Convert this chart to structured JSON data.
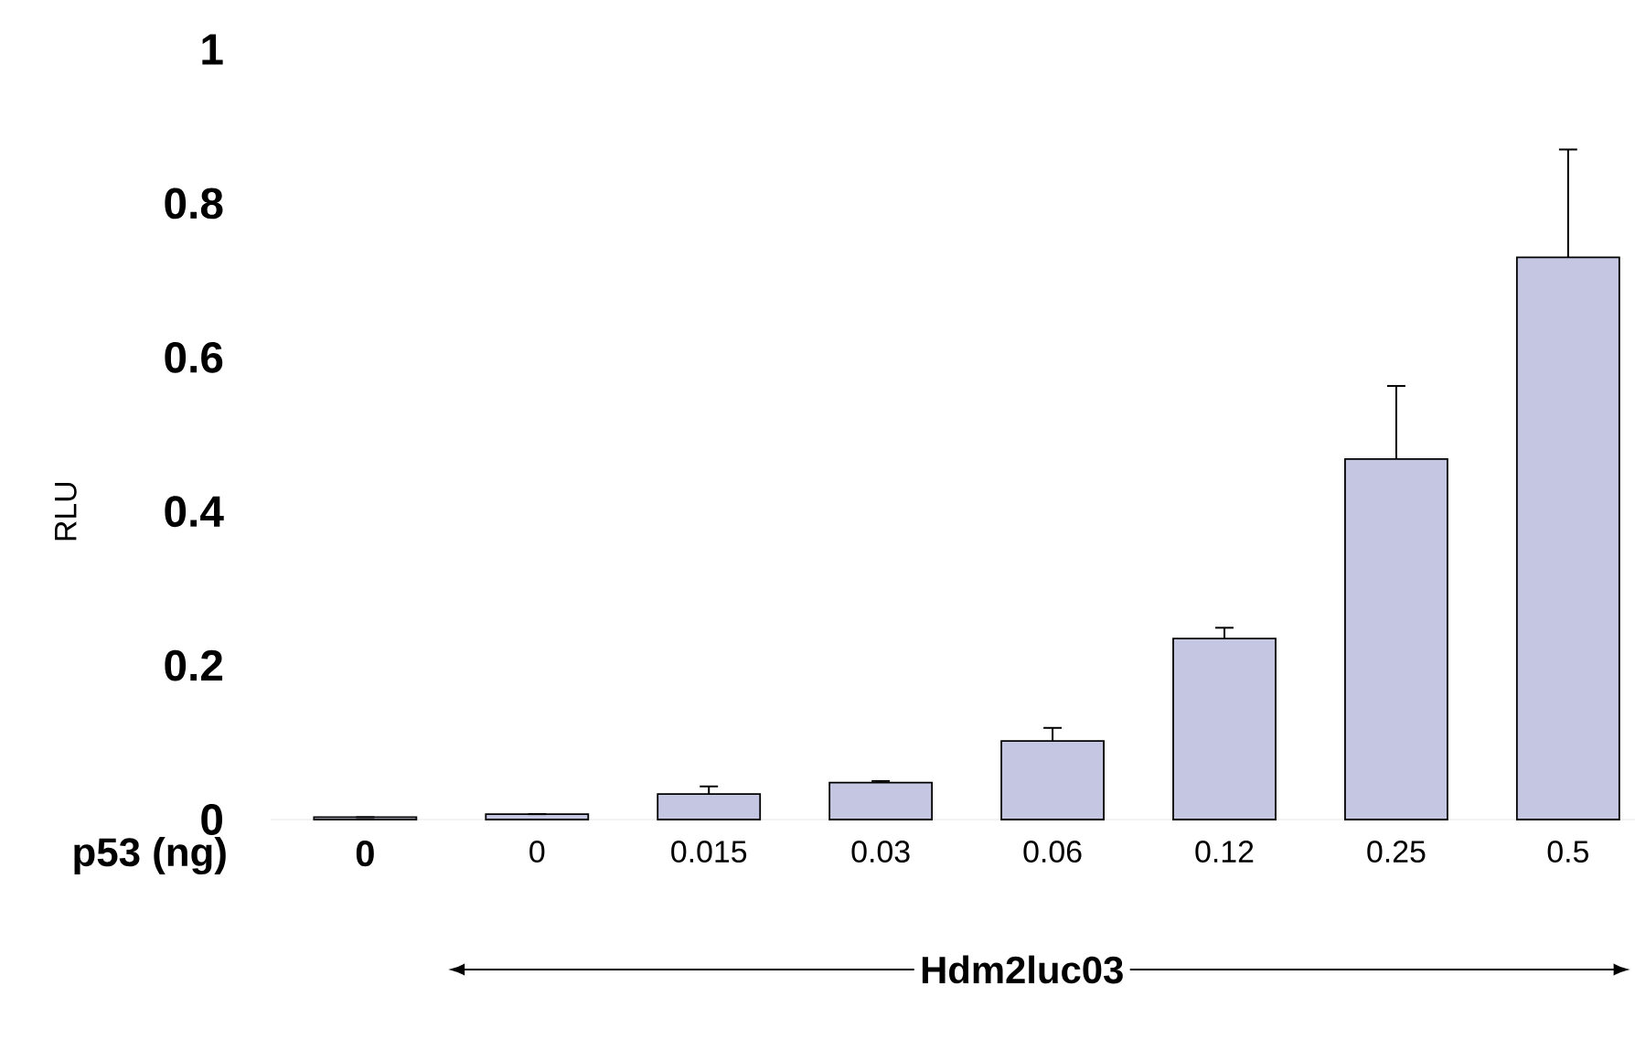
{
  "chart_data": {
    "type": "bar",
    "xlabel": "p53 (ng)",
    "ylabel": "RLU",
    "categories": [
      "0",
      "0",
      "0.015",
      "0.03",
      "0.06",
      "0.12",
      "0.25",
      "0.5"
    ],
    "values": [
      0.003,
      0.007,
      0.033,
      0.048,
      0.102,
      0.235,
      0.468,
      0.73
    ],
    "errors": [
      null,
      null,
      0.01,
      0.002,
      0.017,
      0.014,
      0.095,
      0.14
    ],
    "color": "#c4c6e2",
    "ylim": [
      0,
      1
    ],
    "yticks": [
      0,
      0.2,
      0.4,
      0.6,
      0.8,
      1
    ],
    "annotations": [
      "Hdm2luc03"
    ]
  }
}
